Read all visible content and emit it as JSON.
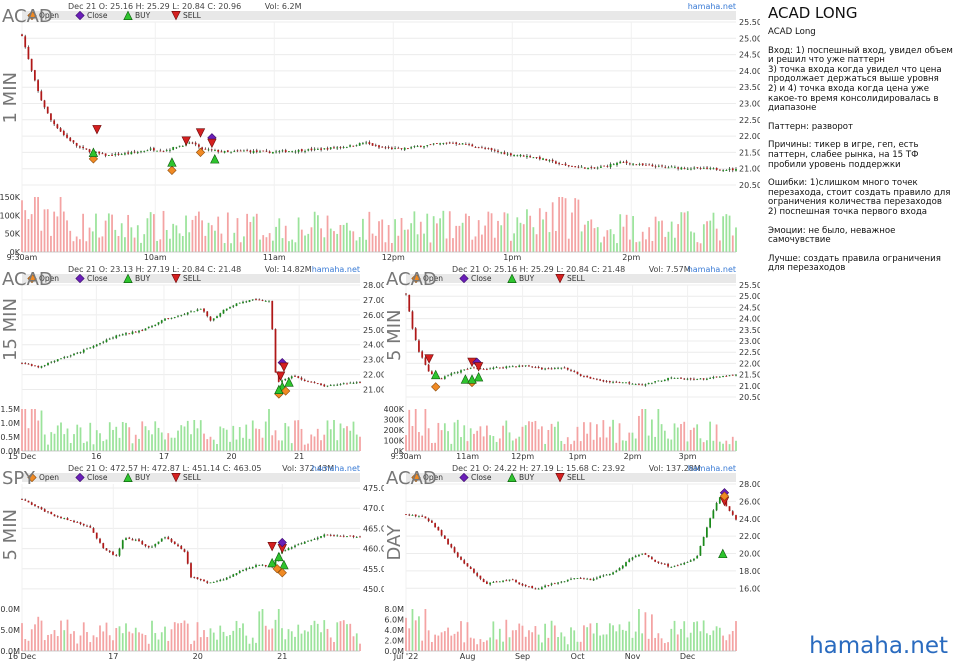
{
  "brand": "hamaha.net",
  "legend": {
    "open": "Open",
    "close": "Close",
    "buy": "BUY",
    "sell": "SELL"
  },
  "colors": {
    "up": "#1a8a1a",
    "down": "#b01818",
    "vol_up": "#9be39b",
    "vol_down": "#f4a3a3",
    "open_marker": "#f08a24",
    "close_marker": "#6a1fb8",
    "buy_marker": "#2ec42e",
    "sell_marker": "#d42020",
    "brand": "#2a6bbf"
  },
  "notes": {
    "title": "ACAD LONG",
    "lines": [
      "ACAD Long",
      "Вход: 1) поспешный вход, увидел объем и решил что уже паттерн\n3) точка входа когда увидел что цена продолжает держаться выше уровня\n2) и 4) точка входа когда цена уже какое-то время консолидировалась в диапазоне",
      "Паттерн: разворот",
      "Причины: тикер в игре, геп, есть паттерн, слабее рынка, на 15 ТФ пробили уровень поддержки",
      "Ошибки: 1)слишком много точек перезахода, стоит создать правило для ограничения количества перезаходов\n2) поспешная точка первого входа",
      "Эмоции: не было, неважное самочувствие",
      "Лучше: создать правила ограничения для перезаходов"
    ]
  },
  "chart_data": [
    {
      "id": "c1",
      "type": "candlestick",
      "ticker": "ACAD",
      "timeframe": "1 MIN",
      "header": "Dec 21 O: 25.16 H: 25.29 L: 20.84 C: 20.96",
      "volume_label": "Vol: 6.2M",
      "ylim": [
        20.5,
        25.5
      ],
      "yticks": [
        "25.50",
        "25.00",
        "24.50",
        "24.00",
        "23.50",
        "23.00",
        "22.50",
        "22.00",
        "21.50",
        "21.00",
        "20.50"
      ],
      "xticks": [
        "9:30am",
        "10am",
        "11am",
        "12pm",
        "1pm",
        "2pm"
      ],
      "vol_ticks": [
        "150K",
        "100K",
        "50K",
        "0K"
      ],
      "vol_max": 150000,
      "path": [
        [
          0,
          25.1
        ],
        [
          0.012,
          24.1
        ],
        [
          0.025,
          23.2
        ],
        [
          0.04,
          22.5
        ],
        [
          0.06,
          22.0
        ],
        [
          0.08,
          21.65
        ],
        [
          0.1,
          21.5
        ],
        [
          0.12,
          21.4
        ],
        [
          0.14,
          21.45
        ],
        [
          0.16,
          21.5
        ],
        [
          0.18,
          21.6
        ],
        [
          0.2,
          21.55
        ],
        [
          0.22,
          21.7
        ],
        [
          0.24,
          21.8
        ],
        [
          0.25,
          21.6
        ],
        [
          0.27,
          21.55
        ],
        [
          0.29,
          21.5
        ],
        [
          0.31,
          21.55
        ],
        [
          0.34,
          21.5
        ],
        [
          0.38,
          21.55
        ],
        [
          0.42,
          21.6
        ],
        [
          0.46,
          21.7
        ],
        [
          0.48,
          21.8
        ],
        [
          0.5,
          21.65
        ],
        [
          0.53,
          21.6
        ],
        [
          0.56,
          21.7
        ],
        [
          0.6,
          21.8
        ],
        [
          0.62,
          21.75
        ],
        [
          0.65,
          21.6
        ],
        [
          0.68,
          21.45
        ],
        [
          0.72,
          21.35
        ],
        [
          0.76,
          21.1
        ],
        [
          0.8,
          21.0
        ],
        [
          0.84,
          21.2
        ],
        [
          0.87,
          21.1
        ],
        [
          0.9,
          21.05
        ],
        [
          0.95,
          21.0
        ],
        [
          1,
          20.97
        ]
      ],
      "signals": [
        {
          "kind": "open",
          "x": 0.1,
          "y": 21.3
        },
        {
          "kind": "buy",
          "x": 0.1,
          "y": 21.5
        },
        {
          "kind": "sell",
          "x": 0.105,
          "y": 22.2
        },
        {
          "kind": "open",
          "x": 0.21,
          "y": 20.95
        },
        {
          "kind": "buy",
          "x": 0.21,
          "y": 21.2
        },
        {
          "kind": "sell",
          "x": 0.23,
          "y": 21.85
        },
        {
          "kind": "sell",
          "x": 0.25,
          "y": 22.1
        },
        {
          "kind": "open",
          "x": 0.25,
          "y": 21.5
        },
        {
          "kind": "close",
          "x": 0.266,
          "y": 21.95
        },
        {
          "kind": "sell",
          "x": 0.266,
          "y": 21.78
        },
        {
          "kind": "buy",
          "x": 0.27,
          "y": 21.3
        }
      ]
    },
    {
      "id": "c2",
      "type": "candlestick",
      "ticker": "ACAD",
      "timeframe": "15 MIN",
      "header": "Dec 21 O: 23.13 H: 27.19 L: 20.84 C: 21.48",
      "volume_label": "Vol: 14.82M",
      "ylim": [
        20.5,
        28
      ],
      "yticks": [
        "28.00",
        "27.00",
        "26.00",
        "25.00",
        "24.00",
        "23.00",
        "22.00",
        "21.00"
      ],
      "xticks": [
        "15 Dec",
        "16",
        "17",
        "20",
        "21"
      ],
      "vol_ticks": [
        "1.5M",
        "1.0M",
        "0.5M",
        "0.0M"
      ],
      "vol_max": 1500000,
      "path": [
        [
          0,
          22.8
        ],
        [
          0.05,
          22.5
        ],
        [
          0.1,
          23.0
        ],
        [
          0.16,
          23.4
        ],
        [
          0.22,
          24.0
        ],
        [
          0.28,
          24.6
        ],
        [
          0.34,
          24.9
        ],
        [
          0.38,
          25.2
        ],
        [
          0.42,
          25.7
        ],
        [
          0.46,
          25.9
        ],
        [
          0.5,
          26.2
        ],
        [
          0.53,
          26.4
        ],
        [
          0.56,
          25.6
        ],
        [
          0.6,
          26.4
        ],
        [
          0.64,
          26.8
        ],
        [
          0.68,
          27.0
        ],
        [
          0.72,
          26.95
        ],
        [
          0.735,
          26.9
        ],
        [
          0.74,
          25.2
        ],
        [
          0.745,
          22.5
        ],
        [
          0.76,
          21.5
        ],
        [
          0.8,
          21.9
        ],
        [
          0.85,
          21.5
        ],
        [
          0.9,
          21.2
        ],
        [
          0.95,
          21.4
        ],
        [
          1,
          21.5
        ]
      ],
      "signals": [
        {
          "kind": "close",
          "x": 0.77,
          "y": 22.8
        },
        {
          "kind": "sell",
          "x": 0.775,
          "y": 22.5
        },
        {
          "kind": "buy",
          "x": 0.77,
          "y": 21.2
        },
        {
          "kind": "open",
          "x": 0.76,
          "y": 20.7
        },
        {
          "kind": "open",
          "x": 0.78,
          "y": 20.9
        },
        {
          "kind": "buy",
          "x": 0.79,
          "y": 21.5
        },
        {
          "kind": "buy",
          "x": 0.76,
          "y": 21.0
        },
        {
          "kind": "sell",
          "x": 0.765,
          "y": 21.9
        }
      ]
    },
    {
      "id": "c3",
      "type": "candlestick",
      "ticker": "ACAD",
      "timeframe": "5 MIN",
      "header": "Dec 21 O: 25.16 H: 25.29 L: 20.84 C: 21.48",
      "volume_label": "Vol: 7.57M",
      "ylim": [
        20.5,
        25.5
      ],
      "yticks": [
        "25.50",
        "25.00",
        "24.50",
        "24.00",
        "23.50",
        "23.00",
        "22.50",
        "22.00",
        "21.50",
        "21.00",
        "20.50"
      ],
      "xticks": [
        "9:30am",
        "11am",
        "12pm",
        "1pm",
        "2pm",
        "3pm"
      ],
      "vol_ticks": [
        "400K",
        "300K",
        "200K",
        "100K",
        "0K"
      ],
      "vol_max": 400000,
      "path": [
        [
          0,
          25.1
        ],
        [
          0.02,
          23.5
        ],
        [
          0.04,
          22.5
        ],
        [
          0.07,
          21.6
        ],
        [
          0.1,
          21.3
        ],
        [
          0.13,
          21.5
        ],
        [
          0.16,
          21.65
        ],
        [
          0.2,
          21.8
        ],
        [
          0.24,
          21.75
        ],
        [
          0.3,
          21.85
        ],
        [
          0.36,
          21.9
        ],
        [
          0.42,
          21.75
        ],
        [
          0.48,
          21.8
        ],
        [
          0.54,
          21.4
        ],
        [
          0.6,
          21.2
        ],
        [
          0.66,
          21.15
        ],
        [
          0.72,
          21.05
        ],
        [
          0.76,
          21.2
        ],
        [
          0.8,
          21.35
        ],
        [
          0.85,
          21.3
        ],
        [
          0.9,
          21.3
        ],
        [
          0.95,
          21.4
        ],
        [
          1,
          21.48
        ]
      ],
      "signals": [
        {
          "kind": "sell",
          "x": 0.07,
          "y": 22.2
        },
        {
          "kind": "buy",
          "x": 0.09,
          "y": 21.5
        },
        {
          "kind": "open",
          "x": 0.09,
          "y": 20.95
        },
        {
          "kind": "buy",
          "x": 0.18,
          "y": 21.3
        },
        {
          "kind": "open",
          "x": 0.2,
          "y": 21.15
        },
        {
          "kind": "sell",
          "x": 0.2,
          "y": 22.05
        },
        {
          "kind": "close",
          "x": 0.215,
          "y": 22.05
        },
        {
          "kind": "sell",
          "x": 0.22,
          "y": 21.85
        },
        {
          "kind": "buy",
          "x": 0.22,
          "y": 21.4
        },
        {
          "kind": "buy",
          "x": 0.2,
          "y": 21.3
        }
      ]
    },
    {
      "id": "c4",
      "type": "candlestick",
      "ticker": "SPY",
      "timeframe": "5 MIN",
      "header": "Dec 21 O: 472.57 H: 472.87 L: 451.14 C: 463.05",
      "volume_label": "Vol: 372.43M",
      "ylim": [
        448,
        476
      ],
      "yticks": [
        "475.00",
        "470.00",
        "465.00",
        "460.00",
        "455.00",
        "450.00"
      ],
      "xticks": [
        "16 Dec",
        "17",
        "20",
        "21"
      ],
      "vol_ticks": [
        "10.0M",
        "5.0M",
        "0.0M"
      ],
      "vol_max": 10000000,
      "path": [
        [
          0,
          472.2
        ],
        [
          0.05,
          470.0
        ],
        [
          0.1,
          468.0
        ],
        [
          0.16,
          466.5
        ],
        [
          0.2,
          465.5
        ],
        [
          0.24,
          460.0
        ],
        [
          0.28,
          458.0
        ],
        [
          0.3,
          462.5
        ],
        [
          0.34,
          462.0
        ],
        [
          0.38,
          460.0
        ],
        [
          0.42,
          463.0
        ],
        [
          0.46,
          460.5
        ],
        [
          0.48,
          459.5
        ],
        [
          0.5,
          453.0
        ],
        [
          0.55,
          451.5
        ],
        [
          0.6,
          452.5
        ],
        [
          0.66,
          455.0
        ],
        [
          0.7,
          456.0
        ],
        [
          0.74,
          455.5
        ],
        [
          0.76,
          459.0
        ],
        [
          0.8,
          460.5
        ],
        [
          0.85,
          462.0
        ],
        [
          0.9,
          463.5
        ],
        [
          0.95,
          463.0
        ],
        [
          1,
          463.0
        ]
      ],
      "signals": [
        {
          "kind": "sell",
          "x": 0.74,
          "y": 460.5
        },
        {
          "kind": "sell",
          "x": 0.77,
          "y": 460.0
        },
        {
          "kind": "close",
          "x": 0.77,
          "y": 461.5
        },
        {
          "kind": "buy",
          "x": 0.74,
          "y": 456.5
        },
        {
          "kind": "buy",
          "x": 0.76,
          "y": 458.0
        },
        {
          "kind": "buy",
          "x": 0.775,
          "y": 456.0
        },
        {
          "kind": "open",
          "x": 0.755,
          "y": 455.0
        },
        {
          "kind": "open",
          "x": 0.77,
          "y": 454.0
        }
      ]
    },
    {
      "id": "c5",
      "type": "candlestick",
      "ticker": "ACAD",
      "timeframe": "DAY",
      "header": "Dec 21 O: 24.22 H: 27.19 L: 15.68 C: 23.92",
      "volume_label": "Vol: 137.28M",
      "ylim": [
        15,
        28
      ],
      "yticks": [
        "28.00",
        "26.00",
        "24.00",
        "22.00",
        "20.00",
        "18.00",
        "16.00"
      ],
      "xticks": [
        "Jul '22",
        "Aug",
        "Sep",
        "Oct",
        "Nov",
        "Dec"
      ],
      "vol_ticks": [
        "8.0M",
        "6.0M",
        "4.0M",
        "2.0M",
        "0.0M"
      ],
      "vol_max": 8000000,
      "path": [
        [
          0,
          24.5
        ],
        [
          0.05,
          24.2
        ],
        [
          0.08,
          23.5
        ],
        [
          0.12,
          21.5
        ],
        [
          0.16,
          19.5
        ],
        [
          0.2,
          18.0
        ],
        [
          0.24,
          16.5
        ],
        [
          0.28,
          16.8
        ],
        [
          0.32,
          17.0
        ],
        [
          0.36,
          16.2
        ],
        [
          0.4,
          16.0
        ],
        [
          0.46,
          16.7
        ],
        [
          0.52,
          17.2
        ],
        [
          0.56,
          17.0
        ],
        [
          0.6,
          17.5
        ],
        [
          0.64,
          18.0
        ],
        [
          0.68,
          19.5
        ],
        [
          0.72,
          20.0
        ],
        [
          0.76,
          19.0
        ],
        [
          0.8,
          18.5
        ],
        [
          0.84,
          18.8
        ],
        [
          0.88,
          19.5
        ],
        [
          0.92,
          24.0
        ],
        [
          0.95,
          26.5
        ],
        [
          0.97,
          25.5
        ],
        [
          1,
          23.9
        ]
      ],
      "signals": [
        {
          "kind": "close",
          "x": 0.965,
          "y": 27.0
        },
        {
          "kind": "sell",
          "x": 0.965,
          "y": 26.0
        },
        {
          "kind": "buy",
          "x": 0.96,
          "y": 20.0
        },
        {
          "kind": "open",
          "x": 0.965,
          "y": 26.6
        }
      ]
    }
  ]
}
